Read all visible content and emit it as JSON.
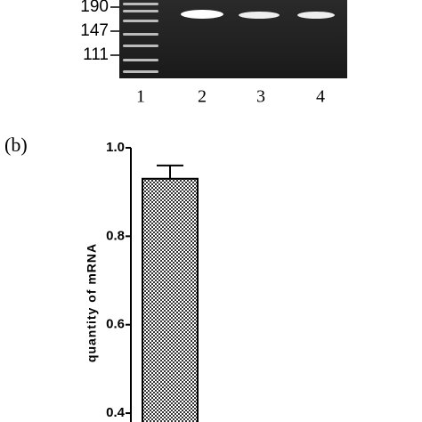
{
  "gel": {
    "markers": [
      "190",
      "147",
      "111"
    ],
    "lanes": [
      "1",
      "2",
      "3",
      "4"
    ]
  },
  "chart_data": {
    "type": "bar",
    "panel_label": "(b)",
    "y_label": "quantity of mRNA",
    "categories": [
      null
    ],
    "values": [
      0.93
    ],
    "errors": [
      0.03
    ],
    "color": "#555555",
    "ylim": [
      0.38,
      1.0
    ],
    "yticks": [
      {
        "value": 1,
        "label": "1.0"
      },
      0.8,
      0.6,
      0.4
    ]
  }
}
